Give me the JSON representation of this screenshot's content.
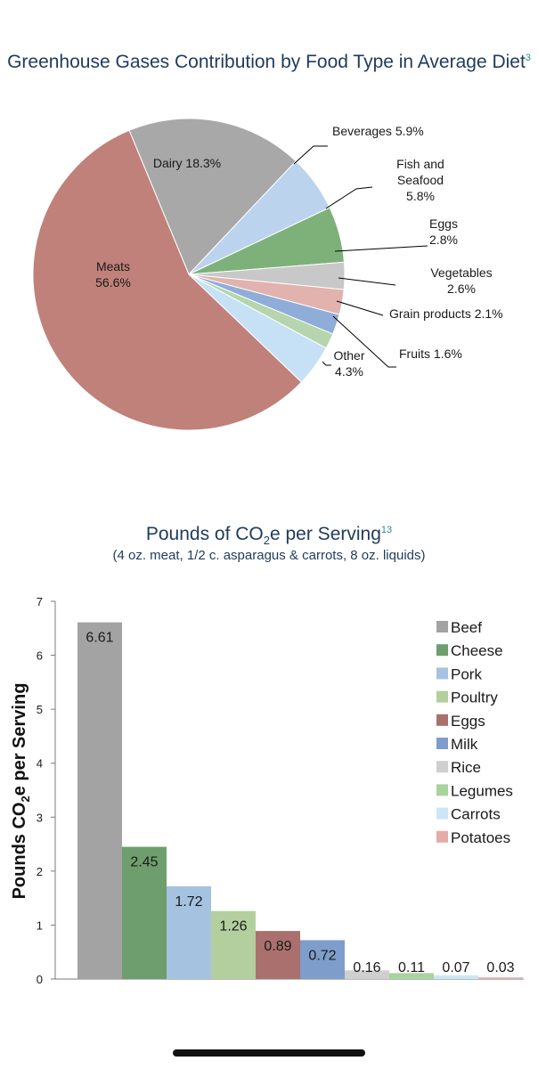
{
  "chart_data": [
    {
      "type": "pie",
      "title": "Greenhouse Gases Contribution by Food Type in Average Diet",
      "title_superscript": "3",
      "slices": [
        {
          "label": "Dairy",
          "value": 18.3,
          "value_label": "18.3%",
          "color": "#a8a8a8"
        },
        {
          "label": "Beverages",
          "value": 5.9,
          "value_label": "5.9%",
          "color": "#bcd3ee"
        },
        {
          "label": "Fish and Seafood",
          "value": 5.8,
          "value_label": "5.8%",
          "color": "#7eb17a"
        },
        {
          "label": "Eggs",
          "value": 2.8,
          "value_label": "2.8%",
          "color": "#c8c8c8"
        },
        {
          "label": "Vegetables",
          "value": 2.6,
          "value_label": "2.6%",
          "color": "#e2b2ae"
        },
        {
          "label": "Grain products",
          "value": 2.1,
          "value_label": "2.1%",
          "color": "#8eadd9"
        },
        {
          "label": "Fruits",
          "value": 1.6,
          "value_label": "1.6%",
          "color": "#b6d5ac"
        },
        {
          "label": "Other",
          "value": 4.3,
          "value_label": "4.3%",
          "color": "#c6e1f5"
        },
        {
          "label": "Meats",
          "value": 56.6,
          "value_label": "56.6%",
          "color": "#c0817a"
        }
      ]
    },
    {
      "type": "bar",
      "title": "Pounds of CO2e per Serving",
      "title_parts": {
        "pre": "Pounds of CO",
        "sub": "2",
        "post": "e per Serving",
        "sup": "13"
      },
      "subtitle": "(4 oz. meat, 1/2 c. asparagus & carrots, 8 oz. liquids)",
      "ylabel_parts": {
        "pre": "Pounds CO",
        "sub": "2",
        "post": "e per Serving"
      },
      "ylim": [
        0,
        7
      ],
      "yticks": [
        0,
        1,
        2,
        3,
        4,
        5,
        6,
        7
      ],
      "legend_position": "right",
      "grid": false,
      "categories": [
        "Beef",
        "Cheese",
        "Pork",
        "Poultry",
        "Eggs",
        "Milk",
        "Rice",
        "Legumes",
        "Carrots",
        "Potatoes"
      ],
      "values": [
        6.61,
        2.45,
        1.72,
        1.26,
        0.89,
        0.72,
        0.16,
        0.11,
        0.07,
        0.03
      ],
      "value_labels": [
        "6.61",
        "2.45",
        "1.72",
        "1.26",
        "0.89",
        "0.72",
        "0.16",
        "0.11",
        "0.07",
        "0.03"
      ],
      "colors": [
        "#a3a3a3",
        "#6e9e6d",
        "#a5c2e0",
        "#b3cf9e",
        "#a9706d",
        "#7e9dcb",
        "#cfcfcf",
        "#a9d39d",
        "#cde6f7",
        "#e3acaa"
      ]
    }
  ]
}
